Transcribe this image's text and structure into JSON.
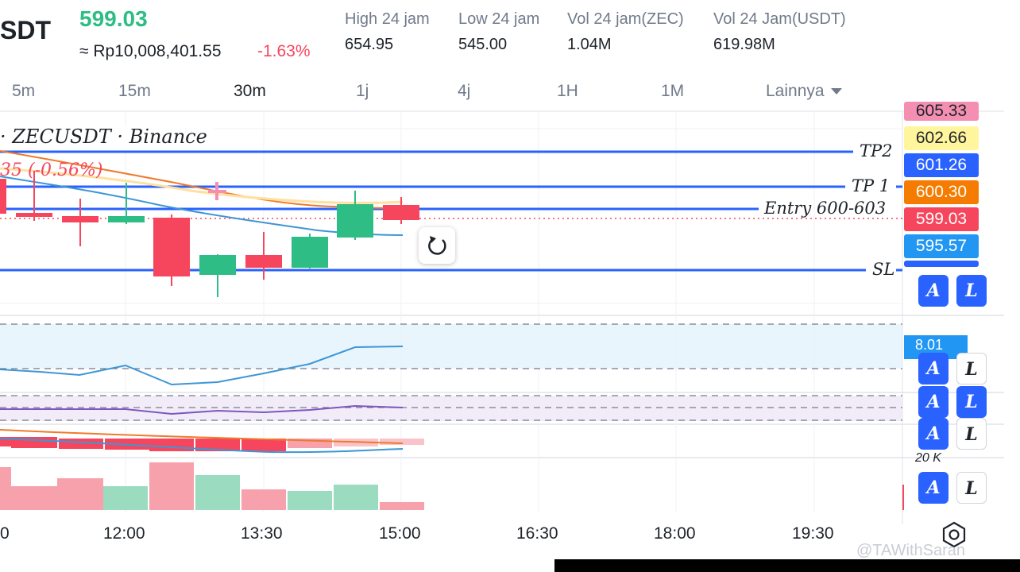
{
  "header": {
    "symbol": "SDT",
    "last_price": "599.03",
    "fiat_price": "≈ Rp10,008,401.55",
    "change_pct": "-1.63%",
    "stats": [
      {
        "label": "High 24 jam",
        "value": "654.95"
      },
      {
        "label": "Low 24 jam",
        "value": "545.00"
      },
      {
        "label": "Vol 24 jam(ZEC)",
        "value": "1.04M"
      },
      {
        "label": "Vol 24 Jam(USDT)",
        "value": "619.98M"
      }
    ]
  },
  "timeframes": {
    "items": [
      "5m",
      "15m",
      "30m",
      "1j",
      "4j",
      "1H",
      "1M"
    ],
    "active": "30m",
    "more_label": "Lainnya"
  },
  "chart": {
    "symbol_label": "· ZECUSDT · Binance",
    "change_label": "35 (-0.56%)",
    "lines": {
      "tp2": "TP2",
      "tp1": "TP 1",
      "entry": "Entry 600-603",
      "sl": "SL"
    },
    "price_tags": [
      {
        "value": "605.33",
        "color": "#f48fb1",
        "text_color": "#1e2329"
      },
      {
        "value": "602.66",
        "color": "#fff59d",
        "text_color": "#1e2329"
      },
      {
        "value": "601.26",
        "color": "#2962ff",
        "text_color": "#ffffff"
      },
      {
        "value": "600.30",
        "color": "#f57c00",
        "text_color": "#ffffff"
      },
      {
        "value": "599.03",
        "color": "#f6465d",
        "text_color": "#ffffff"
      },
      {
        "value": "595.57",
        "color": "#2196f3",
        "text_color": "#ffffff"
      }
    ],
    "indicator_tag": "8.01",
    "volume_axis_label": "20 K",
    "x_axis": [
      "0",
      "12:00",
      "13:30",
      "15:00",
      "16:30",
      "18:00",
      "19:30"
    ],
    "al_buttons": [
      {
        "a": "A",
        "l": "L"
      }
    ]
  },
  "watermark": "@TAWithSaran",
  "colors": {
    "up": "#2ebd85",
    "down": "#f6465d",
    "line_blue": "#2962ff",
    "ma_orange": "#ef7b2a",
    "ma_yellow": "#ffe0a0",
    "ma_blue": "#3d96d6"
  }
}
